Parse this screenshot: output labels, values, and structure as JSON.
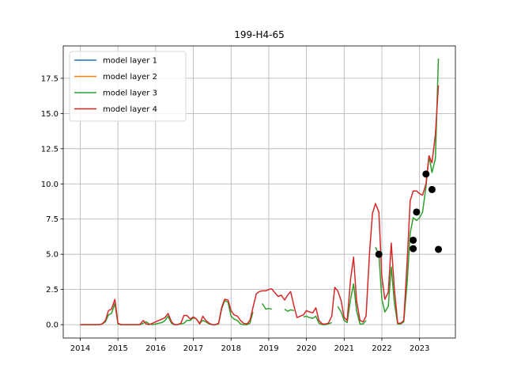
{
  "chart_data": {
    "type": "line",
    "title": "199-H4-65",
    "xlabel": "",
    "ylabel": "",
    "xlim": [
      2013.55,
      2023.95
    ],
    "ylim": [
      -0.95,
      19.8
    ],
    "x_ticks": [
      2014,
      2015,
      2016,
      2017,
      2018,
      2019,
      2020,
      2021,
      2022,
      2023
    ],
    "x_tick_labels": [
      "2014",
      "2015",
      "2016",
      "2017",
      "2018",
      "2019",
      "2020",
      "2021",
      "2022",
      "2023"
    ],
    "y_ticks": [
      0.0,
      2.5,
      5.0,
      7.5,
      10.0,
      12.5,
      15.0,
      17.5
    ],
    "y_tick_labels": [
      "0.0",
      "2.5",
      "5.0",
      "7.5",
      "10.0",
      "12.5",
      "15.0",
      "17.5"
    ],
    "grid": true,
    "legend_position": "top-left",
    "series": [
      {
        "name": "model layer 1",
        "color": "#1f77b4",
        "segments": []
      },
      {
        "name": "model layer 2",
        "color": "#ff7f0e",
        "segments": []
      },
      {
        "name": "model layer 3",
        "color": "#2ca02c",
        "segments": [
          [
            [
              2014.0,
              0.0
            ],
            [
              2014.5,
              0.0
            ],
            [
              2014.58,
              0.05
            ],
            [
              2014.67,
              0.2
            ],
            [
              2014.75,
              0.7
            ],
            [
              2014.83,
              0.8
            ],
            [
              2014.92,
              1.5
            ],
            [
              2015.0,
              0.05
            ],
            [
              2015.08,
              0.0
            ],
            [
              2015.5,
              0.0
            ],
            [
              2015.58,
              0.0
            ],
            [
              2015.67,
              0.1
            ],
            [
              2015.75,
              0.2
            ],
            [
              2015.83,
              0.05
            ],
            [
              2015.92,
              0.0
            ],
            [
              2016.0,
              0.05
            ],
            [
              2016.08,
              0.1
            ],
            [
              2016.17,
              0.15
            ],
            [
              2016.25,
              0.3
            ],
            [
              2016.33,
              0.6
            ],
            [
              2016.42,
              0.1
            ],
            [
              2016.5,
              0.0
            ],
            [
              2016.58,
              0.0
            ],
            [
              2016.67,
              0.05
            ],
            [
              2016.75,
              0.1
            ],
            [
              2016.83,
              0.3
            ],
            [
              2016.92,
              0.3
            ],
            [
              2017.0,
              0.5
            ],
            [
              2017.08,
              0.4
            ],
            [
              2017.17,
              0.1
            ],
            [
              2017.25,
              0.3
            ],
            [
              2017.33,
              0.2
            ],
            [
              2017.42,
              0.05
            ],
            [
              2017.5,
              0.0
            ],
            [
              2017.58,
              0.0
            ],
            [
              2017.67,
              0.05
            ],
            [
              2017.75,
              1.1
            ],
            [
              2017.83,
              1.7
            ],
            [
              2017.92,
              1.6
            ],
            [
              2018.0,
              0.6
            ],
            [
              2018.08,
              0.4
            ],
            [
              2018.17,
              0.3
            ],
            [
              2018.25,
              0.05
            ],
            [
              2018.33,
              0.0
            ],
            [
              2018.42,
              0.0
            ],
            [
              2018.5,
              0.1
            ],
            [
              2018.58,
              0.9
            ]
          ],
          [
            [
              2018.83,
              1.5
            ],
            [
              2018.92,
              1.1
            ],
            [
              2019.0,
              1.15
            ],
            [
              2019.08,
              1.1
            ]
          ],
          [
            [
              2019.42,
              1.1
            ],
            [
              2019.5,
              0.95
            ],
            [
              2019.58,
              1.05
            ],
            [
              2019.67,
              1.0
            ]
          ],
          [
            [
              2019.92,
              0.55
            ],
            [
              2020.0,
              0.6
            ],
            [
              2020.08,
              0.5
            ],
            [
              2020.17,
              0.45
            ],
            [
              2020.25,
              0.6
            ],
            [
              2020.33,
              0.1
            ],
            [
              2020.42,
              0.0
            ],
            [
              2020.5,
              0.0
            ],
            [
              2020.58,
              0.05
            ],
            [
              2020.67,
              0.15
            ]
          ],
          [
            [
              2020.83,
              1.3
            ],
            [
              2020.92,
              0.9
            ],
            [
              2021.0,
              0.3
            ],
            [
              2021.08,
              0.15
            ],
            [
              2021.17,
              1.8
            ],
            [
              2021.25,
              2.9
            ],
            [
              2021.33,
              1.0
            ],
            [
              2021.42,
              0.05
            ],
            [
              2021.5,
              0.05
            ],
            [
              2021.58,
              0.3
            ]
          ],
          [
            [
              2021.83,
              5.5
            ],
            [
              2021.92,
              5.0
            ],
            [
              2022.0,
              1.8
            ],
            [
              2022.08,
              0.9
            ],
            [
              2022.17,
              1.3
            ],
            [
              2022.25,
              4.1
            ],
            [
              2022.33,
              1.6
            ],
            [
              2022.42,
              0.05
            ],
            [
              2022.5,
              0.05
            ],
            [
              2022.58,
              0.2
            ],
            [
              2022.67,
              3.0
            ],
            [
              2022.75,
              6.5
            ],
            [
              2022.83,
              7.6
            ],
            [
              2022.92,
              7.4
            ],
            [
              2023.0,
              7.6
            ],
            [
              2023.08,
              8.0
            ],
            [
              2023.17,
              9.8
            ],
            [
              2023.25,
              12.0
            ],
            [
              2023.33,
              10.8
            ],
            [
              2023.42,
              11.8
            ],
            [
              2023.5,
              18.9
            ]
          ]
        ]
      },
      {
        "name": "model layer 4",
        "color": "#d62728",
        "segments": [
          [
            [
              2014.0,
              0.0
            ],
            [
              2014.5,
              0.0
            ],
            [
              2014.58,
              0.05
            ],
            [
              2014.67,
              0.3
            ],
            [
              2014.75,
              1.0
            ],
            [
              2014.83,
              1.1
            ],
            [
              2014.92,
              1.8
            ],
            [
              2015.0,
              0.1
            ],
            [
              2015.08,
              0.0
            ],
            [
              2015.5,
              0.0
            ],
            [
              2015.58,
              0.0
            ],
            [
              2015.67,
              0.3
            ],
            [
              2015.75,
              0.05
            ],
            [
              2015.83,
              0.0
            ],
            [
              2015.92,
              0.1
            ],
            [
              2016.0,
              0.2
            ],
            [
              2016.08,
              0.3
            ],
            [
              2016.17,
              0.4
            ],
            [
              2016.25,
              0.5
            ],
            [
              2016.33,
              0.8
            ],
            [
              2016.42,
              0.2
            ],
            [
              2016.5,
              0.0
            ],
            [
              2016.58,
              0.0
            ],
            [
              2016.67,
              0.1
            ],
            [
              2016.75,
              0.65
            ],
            [
              2016.83,
              0.65
            ],
            [
              2016.92,
              0.4
            ],
            [
              2017.0,
              0.55
            ],
            [
              2017.08,
              0.4
            ],
            [
              2017.17,
              0.05
            ],
            [
              2017.25,
              0.6
            ],
            [
              2017.33,
              0.3
            ],
            [
              2017.42,
              0.1
            ],
            [
              2017.5,
              0.0
            ],
            [
              2017.58,
              0.0
            ],
            [
              2017.67,
              0.1
            ],
            [
              2017.75,
              1.2
            ],
            [
              2017.83,
              1.8
            ],
            [
              2017.92,
              1.75
            ],
            [
              2018.0,
              1.0
            ],
            [
              2018.08,
              0.7
            ],
            [
              2018.17,
              0.6
            ],
            [
              2018.25,
              0.3
            ],
            [
              2018.33,
              0.1
            ],
            [
              2018.42,
              0.05
            ],
            [
              2018.5,
              0.3
            ],
            [
              2018.58,
              1.2
            ],
            [
              2018.67,
              2.2
            ],
            [
              2018.75,
              2.35
            ],
            [
              2018.83,
              2.4
            ],
            [
              2018.92,
              2.4
            ],
            [
              2019.0,
              2.5
            ],
            [
              2019.08,
              2.55
            ],
            [
              2019.17,
              2.25
            ],
            [
              2019.25,
              2.0
            ],
            [
              2019.33,
              2.1
            ],
            [
              2019.42,
              1.75
            ],
            [
              2019.5,
              2.1
            ],
            [
              2019.58,
              2.35
            ],
            [
              2019.67,
              1.3
            ],
            [
              2019.75,
              0.5
            ],
            [
              2019.83,
              0.6
            ],
            [
              2019.92,
              0.7
            ],
            [
              2020.0,
              1.0
            ],
            [
              2020.08,
              0.9
            ],
            [
              2020.17,
              0.85
            ],
            [
              2020.25,
              1.2
            ],
            [
              2020.33,
              0.3
            ],
            [
              2020.42,
              0.05
            ],
            [
              2020.5,
              0.05
            ],
            [
              2020.58,
              0.1
            ],
            [
              2020.67,
              0.6
            ],
            [
              2020.75,
              2.65
            ],
            [
              2020.83,
              2.4
            ],
            [
              2020.92,
              1.7
            ],
            [
              2021.0,
              0.5
            ],
            [
              2021.08,
              0.3
            ],
            [
              2021.17,
              3.2
            ],
            [
              2021.25,
              4.8
            ],
            [
              2021.33,
              1.7
            ],
            [
              2021.42,
              0.3
            ],
            [
              2021.5,
              0.2
            ],
            [
              2021.58,
              0.6
            ],
            [
              2021.67,
              5.0
            ],
            [
              2021.75,
              7.9
            ],
            [
              2021.83,
              8.6
            ],
            [
              2021.92,
              8.0
            ],
            [
              2022.0,
              3.4
            ],
            [
              2022.08,
              1.8
            ],
            [
              2022.17,
              2.3
            ],
            [
              2022.25,
              5.8
            ],
            [
              2022.33,
              2.6
            ],
            [
              2022.42,
              0.1
            ],
            [
              2022.5,
              0.1
            ],
            [
              2022.58,
              0.3
            ],
            [
              2022.67,
              4.5
            ],
            [
              2022.75,
              8.8
            ],
            [
              2022.83,
              9.5
            ],
            [
              2022.92,
              9.5
            ],
            [
              2023.0,
              9.3
            ],
            [
              2023.08,
              9.2
            ],
            [
              2023.17,
              10.0
            ],
            [
              2023.25,
              12.0
            ],
            [
              2023.33,
              11.5
            ],
            [
              2023.42,
              13.5
            ],
            [
              2023.5,
              17.0
            ]
          ]
        ]
      }
    ],
    "observations": {
      "color": "#000000",
      "points": [
        [
          2021.92,
          5.0
        ],
        [
          2022.83,
          5.4
        ],
        [
          2022.83,
          6.0
        ],
        [
          2022.92,
          8.0
        ],
        [
          2023.17,
          10.7
        ],
        [
          2023.33,
          9.6
        ],
        [
          2023.5,
          5.35
        ]
      ]
    }
  }
}
